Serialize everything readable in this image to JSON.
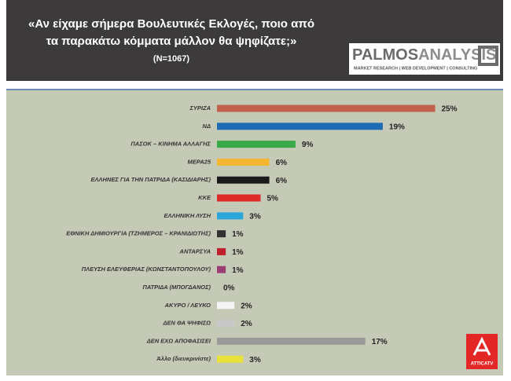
{
  "chart_data": {
    "type": "hbar",
    "title": [
      "«Αν είχαμε σήμερα Βουλευτικές Εκλογές, ποιο από",
      "τα παρακάτω κόμματα μάλλον θα ψηφίζατε;»"
    ],
    "subtitle": "(N=1067)",
    "categories": [
      "ΣΥΡΙΖΑ",
      "ΝΔ",
      "ΠΑΣΟΚ – ΚΙΝΗΜΑ ΑΛΛΑΓΗΣ",
      "ΜΕΡΑ25",
      "ΕΛΛΗΝΕΣ ΓΙΑ ΤΗΝ ΠΑΤΡΙΔΑ (ΚΑΣΙΔΙΑΡΗΣ)",
      "ΚΚΕ",
      "ΕΛΛΗΝΙΚΗ ΛΥΣΗ",
      "ΕΘΝΙΚΗ ΔΗΜΙΟΥΡΓΙΑ (ΤΖΗΜΕΡΟΣ – ΚΡΑΝΙΔΙΩΤΗΣ)",
      "ΑΝΤΑΡΣΥΑ",
      "ΠΛΕΥΣΗ ΕΛΕΥΘΕΡΙΑΣ (ΚΩΝΣΤΑΝΤΟΠΟΥΛΟΥ)",
      "ΠΑΤΡΙΔΑ (ΜΠΟΓΔΑΝΟΣ)",
      "ΑΚΥΡΟ / ΛΕΥΚΟ",
      "ΔΕΝ ΘΑ ΨΗΦΙΣΩ",
      "ΔΕΝ ΕΧΩ ΑΠΟΦΑΣΙΣΕΙ",
      "Άλλο (διευκρινίστε)"
    ],
    "values": [
      25,
      19,
      9,
      6,
      6,
      5,
      3,
      1,
      1,
      1,
      0,
      2,
      2,
      17,
      3
    ],
    "value_labels": [
      "25%",
      "19%",
      "9%",
      "6%",
      "6%",
      "5%",
      "3%",
      "1%",
      "1%",
      "1%",
      "0%",
      "2%",
      "2%",
      "17%",
      "3%"
    ],
    "colors": [
      "#c0614a",
      "#1f6bb5",
      "#3aaa48",
      "#f5b731",
      "#1a1a1a",
      "#e02b2b",
      "#2ba7dc",
      "#333333",
      "#c0202a",
      "#9c3e74",
      "#888888",
      "#f4f4f4",
      "#c8c8c8",
      "#9a9a9a",
      "#e8e23a"
    ]
  },
  "logos": {
    "brand_a": "PALMOS",
    "brand_b": "ANALYSIS",
    "tagline": "MARKET RESEARCH | WEB DEVELOPMENT | CONSULTING",
    "channel": "ATTICATV"
  }
}
